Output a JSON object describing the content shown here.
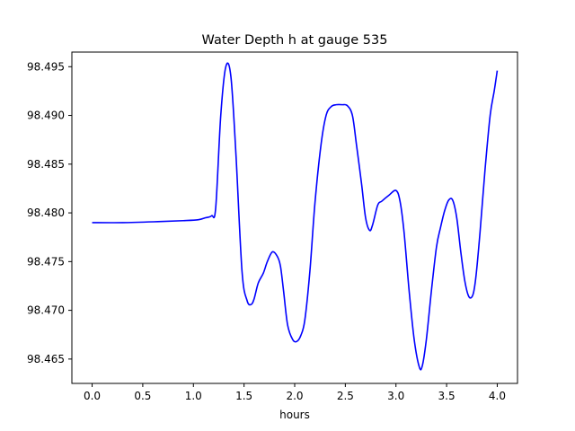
{
  "chart_data": {
    "type": "line",
    "title": "Water Depth h at gauge 535",
    "xlabel": "hours",
    "ylabel": "",
    "xlim": [
      -0.2,
      4.2
    ],
    "ylim": [
      98.4625,
      98.4965
    ],
    "xticks": [
      0.0,
      0.5,
      1.0,
      1.5,
      2.0,
      2.5,
      3.0,
      3.5,
      4.0
    ],
    "xtick_labels": [
      "0.0",
      "0.5",
      "1.0",
      "1.5",
      "2.0",
      "2.5",
      "3.0",
      "3.5",
      "4.0"
    ],
    "yticks": [
      98.465,
      98.47,
      98.475,
      98.48,
      98.485,
      98.49,
      98.495
    ],
    "ytick_labels": [
      "98.465",
      "98.470",
      "98.475",
      "98.480",
      "98.485",
      "98.490",
      "98.495"
    ],
    "grid": false,
    "series": [
      {
        "color": "#0000ff",
        "x": [
          0.0,
          0.3,
          0.65,
          0.9,
          1.05,
          1.12,
          1.18,
          1.22,
          1.27,
          1.32,
          1.37,
          1.42,
          1.48,
          1.53,
          1.57,
          1.6,
          1.64,
          1.69,
          1.73,
          1.78,
          1.83,
          1.86,
          1.89,
          1.93,
          1.98,
          2.02,
          2.06,
          2.1,
          2.15,
          2.2,
          2.26,
          2.31,
          2.36,
          2.41,
          2.47,
          2.52,
          2.57,
          2.61,
          2.66,
          2.7,
          2.74,
          2.77,
          2.82,
          2.86,
          2.93,
          3.0,
          3.04,
          3.08,
          3.13,
          3.18,
          3.23,
          3.26,
          3.3,
          3.35,
          3.4,
          3.44,
          3.48,
          3.52,
          3.56,
          3.6,
          3.64,
          3.68,
          3.72,
          3.76,
          3.79,
          3.83,
          3.88,
          3.93,
          3.97,
          4.0
        ],
        "y": [
          98.479,
          98.479,
          98.4791,
          98.4792,
          98.4793,
          98.4795,
          98.4797,
          98.4805,
          98.49,
          98.495,
          98.494,
          98.486,
          98.474,
          98.471,
          98.4706,
          98.4712,
          98.4728,
          98.4738,
          98.475,
          98.476,
          98.4755,
          98.4745,
          98.472,
          98.4685,
          98.467,
          98.4668,
          98.4674,
          98.469,
          98.474,
          98.481,
          98.487,
          98.49,
          98.4909,
          98.4911,
          98.4911,
          98.491,
          98.49,
          98.487,
          98.483,
          98.4795,
          98.4782,
          98.4788,
          98.4808,
          98.4812,
          98.4818,
          98.4823,
          98.4812,
          98.478,
          98.472,
          98.467,
          98.4642,
          98.4643,
          98.467,
          98.472,
          98.4765,
          98.4785,
          98.4802,
          98.4813,
          98.4813,
          98.4795,
          98.476,
          98.473,
          98.4714,
          98.4716,
          98.4735,
          98.478,
          98.4845,
          98.49,
          98.4925,
          98.4946
        ]
      }
    ]
  }
}
